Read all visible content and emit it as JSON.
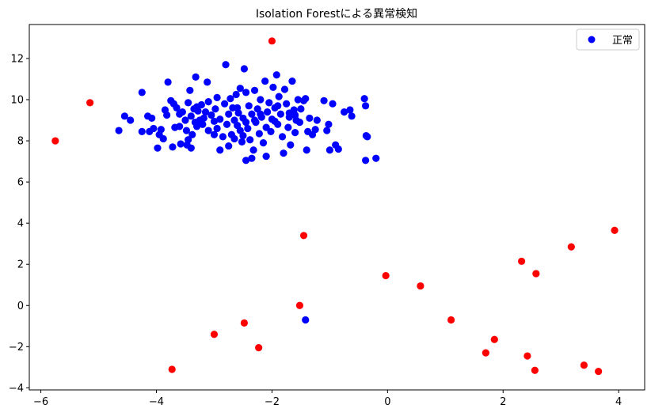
{
  "chart_data": {
    "type": "scatter",
    "title": "Isolation Forestによる異常検知",
    "xlabel": "",
    "ylabel": "",
    "xlim": [
      -6.2,
      4.45
    ],
    "ylim": [
      -4.1,
      13.65
    ],
    "xticks": [
      -6,
      -4,
      -2,
      0,
      2,
      4
    ],
    "yticks": [
      -4,
      -2,
      0,
      2,
      4,
      6,
      8,
      10,
      12
    ],
    "grid": false,
    "legend": {
      "position": "top-right",
      "entries": [
        "正常"
      ]
    },
    "colors": {
      "normal": "#0000ff",
      "anomaly": "#ff0000"
    },
    "series": [
      {
        "name": "正常",
        "color": "#0000ff",
        "points": [
          [
            -4.65,
            8.5
          ],
          [
            -4.55,
            9.2
          ],
          [
            -4.45,
            9.0
          ],
          [
            -4.25,
            10.35
          ],
          [
            -4.25,
            8.45
          ],
          [
            -4.15,
            9.2
          ],
          [
            -4.12,
            8.45
          ],
          [
            -4.08,
            9.1
          ],
          [
            -4.05,
            8.6
          ],
          [
            -3.98,
            7.65
          ],
          [
            -3.95,
            8.3
          ],
          [
            -3.92,
            8.55
          ],
          [
            -3.88,
            8.1
          ],
          [
            -3.85,
            9.5
          ],
          [
            -3.82,
            9.25
          ],
          [
            -3.8,
            10.85
          ],
          [
            -3.75,
            9.95
          ],
          [
            -3.72,
            7.7
          ],
          [
            -3.7,
            9.8
          ],
          [
            -3.68,
            8.65
          ],
          [
            -3.65,
            9.6
          ],
          [
            -3.6,
            9.3
          ],
          [
            -3.58,
            7.85
          ],
          [
            -3.55,
            9.4
          ],
          [
            -3.5,
            9.0
          ],
          [
            -3.48,
            8.5
          ],
          [
            -3.47,
            7.8
          ],
          [
            -3.45,
            9.85
          ],
          [
            -3.42,
            10.45
          ],
          [
            -3.4,
            9.2
          ],
          [
            -3.4,
            7.65
          ],
          [
            -3.38,
            8.3
          ],
          [
            -3.35,
            9.55
          ],
          [
            -3.33,
            8.9
          ],
          [
            -3.32,
            11.1
          ],
          [
            -3.3,
            8.7
          ],
          [
            -3.28,
            9.45
          ],
          [
            -3.25,
            9.0
          ],
          [
            -3.22,
            9.75
          ],
          [
            -3.2,
            8.8
          ],
          [
            -3.18,
            9.1
          ],
          [
            -3.15,
            9.4
          ],
          [
            -3.12,
            10.85
          ],
          [
            -3.1,
            9.9
          ],
          [
            -3.05,
            9.25
          ],
          [
            -3.0,
            8.95
          ],
          [
            -3.0,
            8.3
          ],
          [
            -2.98,
            9.55
          ],
          [
            -2.95,
            10.1
          ],
          [
            -2.95,
            8.6
          ],
          [
            -2.9,
            7.55
          ],
          [
            -2.85,
            8.2
          ],
          [
            -2.82,
            9.8
          ],
          [
            -2.8,
            11.7
          ],
          [
            -2.78,
            8.8
          ],
          [
            -2.75,
            9.3
          ],
          [
            -2.72,
            10.05
          ],
          [
            -2.7,
            8.3
          ],
          [
            -2.68,
            9.6
          ],
          [
            -2.65,
            9.0
          ],
          [
            -2.62,
            10.25
          ],
          [
            -2.6,
            8.75
          ],
          [
            -2.58,
            9.35
          ],
          [
            -2.55,
            10.55
          ],
          [
            -2.52,
            7.95
          ],
          [
            -2.5,
            9.1
          ],
          [
            -2.5,
            8.25
          ],
          [
            -2.48,
            11.5
          ],
          [
            -2.45,
            10.35
          ],
          [
            -2.45,
            7.05
          ],
          [
            -2.42,
            8.6
          ],
          [
            -2.4,
            9.7
          ],
          [
            -2.38,
            8.05
          ],
          [
            -2.35,
            9.3
          ],
          [
            -2.32,
            7.55
          ],
          [
            -2.3,
            10.45
          ],
          [
            -2.28,
            8.9
          ],
          [
            -2.25,
            9.55
          ],
          [
            -2.22,
            8.35
          ],
          [
            -2.2,
            10.0
          ],
          [
            -2.18,
            9.15
          ],
          [
            -2.15,
            7.9
          ],
          [
            -2.12,
            10.9
          ],
          [
            -2.1,
            8.65
          ],
          [
            -2.08,
            9.4
          ],
          [
            -2.05,
            9.85
          ],
          [
            -2.02,
            8.45
          ],
          [
            -2.0,
            9.05
          ],
          [
            -1.98,
            10.6
          ],
          [
            -1.95,
            9.6
          ],
          [
            -1.92,
            11.2
          ],
          [
            -1.9,
            8.8
          ],
          [
            -1.88,
            10.15
          ],
          [
            -1.85,
            9.3
          ],
          [
            -1.82,
            8.2
          ],
          [
            -1.8,
            7.4
          ],
          [
            -1.78,
            10.5
          ],
          [
            -1.75,
            9.8
          ],
          [
            -1.72,
            8.65
          ],
          [
            -1.7,
            9.15
          ],
          [
            -1.68,
            7.8
          ],
          [
            -1.65,
            10.9
          ],
          [
            -1.62,
            9.5
          ],
          [
            -1.6,
            8.4
          ],
          [
            -1.58,
            9.0
          ],
          [
            -1.55,
            10.0
          ],
          [
            -1.52,
            8.9
          ],
          [
            -1.5,
            9.55
          ],
          [
            -1.45,
            9.95
          ],
          [
            -1.42,
            10.05
          ],
          [
            -1.38,
            8.45
          ],
          [
            -1.35,
            9.1
          ],
          [
            -1.3,
            8.3
          ],
          [
            -1.25,
            8.55
          ],
          [
            -1.22,
            9.0
          ],
          [
            -1.1,
            9.95
          ],
          [
            -1.05,
            8.5
          ],
          [
            -1.02,
            8.8
          ],
          [
            -1.0,
            7.55
          ],
          [
            -0.95,
            9.8
          ],
          [
            -0.9,
            7.8
          ],
          [
            -0.85,
            7.6
          ],
          [
            -0.75,
            9.4
          ],
          [
            -0.65,
            9.5
          ],
          [
            -0.62,
            9.2
          ],
          [
            -0.4,
            10.05
          ],
          [
            -0.38,
            9.7
          ],
          [
            -0.37,
            8.25
          ],
          [
            -0.35,
            8.2
          ],
          [
            -0.38,
            7.05
          ],
          [
            -0.2,
            7.15
          ],
          [
            -3.6,
            8.7
          ],
          [
            -3.3,
            9.65
          ],
          [
            -2.9,
            9.05
          ],
          [
            -2.6,
            9.6
          ],
          [
            -2.3,
            9.0
          ],
          [
            -2.1,
            7.25
          ],
          [
            -1.9,
            9.7
          ],
          [
            -1.7,
            9.35
          ],
          [
            -2.75,
            7.75
          ],
          [
            -3.45,
            8.05
          ],
          [
            -2.55,
            8.5
          ],
          [
            -2.35,
            7.15
          ],
          [
            -1.95,
            8.95
          ],
          [
            -1.6,
            9.25
          ],
          [
            -3.1,
            8.5
          ],
          [
            -2.45,
            8.9
          ],
          [
            -2.2,
            9.3
          ],
          [
            -2.65,
            8.1
          ],
          [
            -1.4,
            7.55
          ],
          [
            -1.42,
            -0.7
          ]
        ]
      },
      {
        "name": "",
        "color": "#ff0000",
        "points": [
          [
            -5.75,
            8.0
          ],
          [
            -5.15,
            9.85
          ],
          [
            -2.0,
            12.85
          ],
          [
            -1.45,
            3.4
          ],
          [
            -0.03,
            1.45
          ],
          [
            0.57,
            0.95
          ],
          [
            -1.52,
            0.0
          ],
          [
            1.1,
            -0.7
          ],
          [
            3.93,
            3.65
          ],
          [
            3.18,
            2.85
          ],
          [
            2.32,
            2.15
          ],
          [
            2.57,
            1.55
          ],
          [
            -3.0,
            -1.4
          ],
          [
            -2.48,
            -0.85
          ],
          [
            -2.23,
            -2.05
          ],
          [
            1.85,
            -1.65
          ],
          [
            1.7,
            -2.3
          ],
          [
            2.42,
            -2.45
          ],
          [
            2.55,
            -3.15
          ],
          [
            3.4,
            -2.9
          ],
          [
            3.65,
            -3.2
          ],
          [
            -3.73,
            -3.1
          ]
        ]
      }
    ]
  }
}
